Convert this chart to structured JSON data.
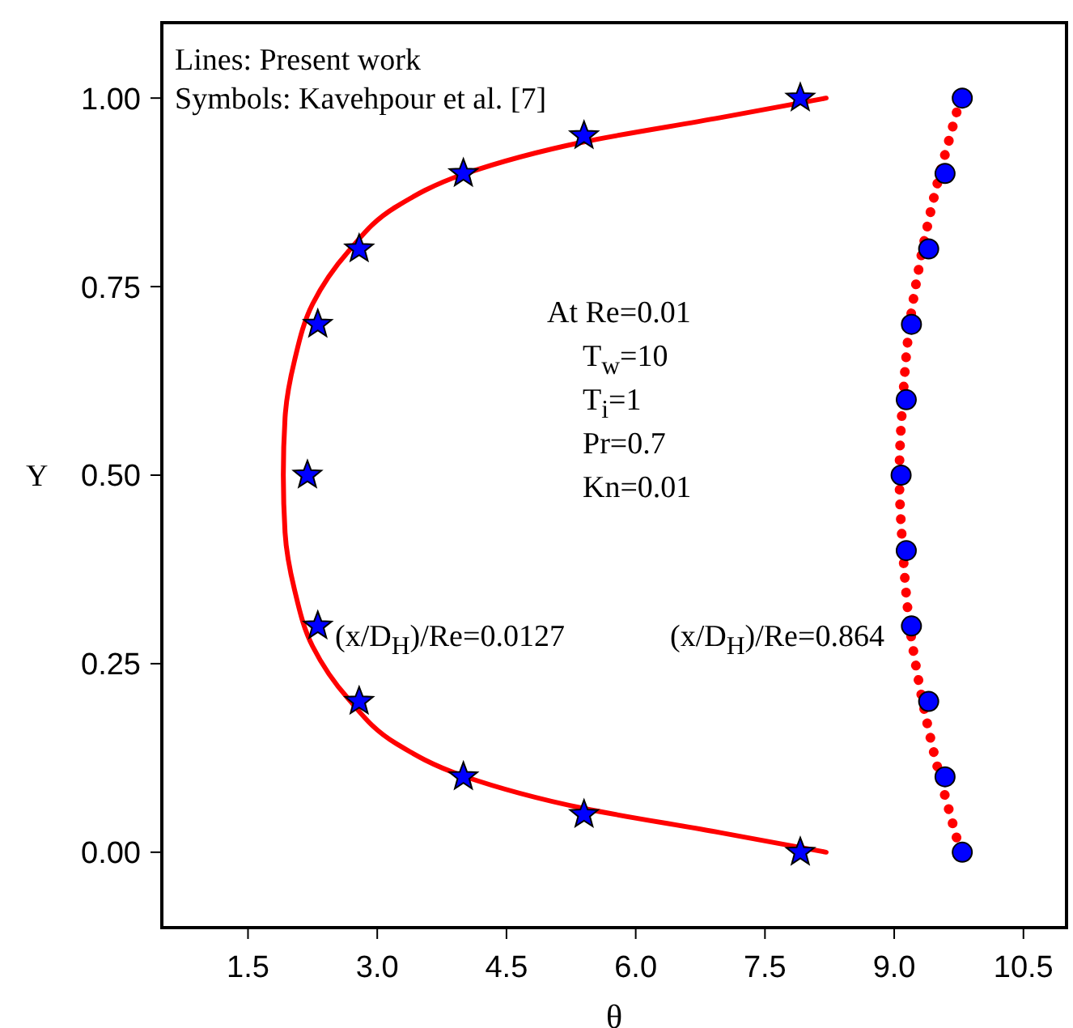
{
  "chart_data": {
    "type": "line",
    "xlabel": "θ",
    "ylabel": "Y",
    "xlim": [
      0.5,
      11
    ],
    "ylim": [
      -0.1,
      1.1
    ],
    "xticks": [
      1.5,
      {
        "value": 3,
        "label": "3.0"
      },
      4.5,
      {
        "value": 6,
        "label": "6.0"
      },
      7.5,
      {
        "value": 9,
        "label": "9.0"
      },
      10.5
    ],
    "yticks": [
      {
        "value": 0,
        "label": "0.00"
      },
      0.25,
      {
        "value": 0.5,
        "label": "0.50"
      },
      0.75,
      {
        "value": 1,
        "label": "1.00"
      }
    ],
    "annotations": [
      "Lines: Present work",
      "Symbols: Kavehpour et al. [7]",
      "At Re=0.01",
      "T$_{w}$=10",
      "T$_{i}$=1",
      "Pr=0.7",
      "Kn=0.01",
      "(x/D$_{H}$)/Re=0.0127",
      "(x/D$_{H}$)/Re=0.864"
    ],
    "series": [
      {
        "color": "#ff0000",
        "line_style": "solid",
        "marker": "none",
        "x": [
          8.21,
          6.98,
          5.4,
          4.0,
          3.22,
          2.66,
          2.25,
          2.04,
          1.93,
          1.91,
          1.93,
          2.04,
          2.25,
          2.66,
          3.22,
          4.0,
          5.4,
          6.98,
          8.21
        ],
        "values": [
          1.0,
          0.974,
          0.942,
          0.899,
          0.856,
          0.796,
          0.727,
          0.652,
          0.576,
          0.5,
          0.424,
          0.348,
          0.273,
          0.204,
          0.144,
          0.101,
          0.058,
          0.026,
          0.0
        ]
      },
      {
        "color": "#ff0000",
        "line_style": "dotted",
        "marker": "none",
        "x": [
          9.77,
          9.65,
          9.53,
          9.33,
          9.18,
          9.1,
          9.06,
          9.1,
          9.18,
          9.33,
          9.53,
          9.65,
          9.77
        ],
        "values": [
          1.0,
          0.95,
          0.9,
          0.8,
          0.7,
          0.6,
          0.5,
          0.4,
          0.3,
          0.2,
          0.1,
          0.05,
          0.0
        ]
      },
      {
        "type": "scatter",
        "color": "#0000ff",
        "marker": "star",
        "x": [
          7.91,
          5.4,
          4.0,
          2.79,
          2.31,
          2.19,
          2.31,
          2.79,
          4.0,
          5.4,
          7.91
        ],
        "values": [
          1.0,
          0.95,
          0.9,
          0.8,
          0.7,
          0.5,
          0.3,
          0.2,
          0.1,
          0.05,
          0.0
        ]
      },
      {
        "type": "scatter",
        "color": "#0000ff",
        "marker": "circle",
        "x": [
          9.79,
          9.59,
          9.4,
          9.2,
          9.14,
          9.08,
          9.14,
          9.2,
          9.4,
          9.59,
          9.79
        ],
        "values": [
          1.0,
          0.9,
          0.8,
          0.7,
          0.6,
          0.5,
          0.4,
          0.3,
          0.2,
          0.1,
          0.0
        ]
      }
    ]
  }
}
